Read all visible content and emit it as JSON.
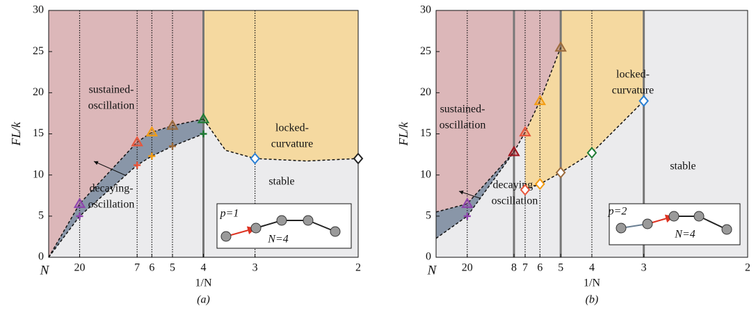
{
  "chart_data": [
    {
      "type": "phase",
      "caption": "(a)",
      "xlabel": "1/N",
      "ylabel": "FL/k",
      "xlim": [
        0,
        0.5
      ],
      "ylim": [
        0,
        30
      ],
      "xticks": [
        {
          "value": 0,
          "label": "N"
        },
        {
          "value": 0.05,
          "label": "20"
        },
        {
          "value": 0.1429,
          "label": "7"
        },
        {
          "value": 0.1667,
          "label": "6"
        },
        {
          "value": 0.2,
          "label": "5"
        },
        {
          "value": 0.25,
          "label": "4"
        },
        {
          "value": 0.3333,
          "label": "3"
        },
        {
          "value": 0.5,
          "label": "2"
        }
      ],
      "yticks": [
        0,
        5,
        10,
        15,
        20,
        25,
        30
      ],
      "background": "#ebebed",
      "boundaries": [
        {
          "x": [
            0,
            0.05,
            0.1429,
            0.1667,
            0.2,
            0.25
          ],
          "y": [
            0,
            6.5,
            14,
            15.2,
            16,
            16.8
          ]
        },
        {
          "x": [
            0,
            0.05,
            0.1429,
            0.1667,
            0.2,
            0.25
          ],
          "y": [
            0,
            5,
            11.2,
            12.3,
            13.5,
            15
          ]
        },
        {
          "x": [
            0.25,
            0.2857,
            0.3333,
            0.4167,
            0.5
          ],
          "y": [
            16.8,
            13,
            12,
            11.7,
            12
          ]
        }
      ],
      "regions": [
        {
          "color": "#dcb7b9",
          "x": [
            0,
            0.25
          ],
          "bottom": 0
        },
        {
          "color": "#8996a8",
          "x": [
            0,
            0.25
          ],
          "top": 0,
          "bottom": 1
        },
        {
          "color": "#f5d9a0",
          "x": [
            0.25,
            0.5
          ],
          "bottom": 2
        }
      ],
      "dotted_lines": [
        0.05,
        0.1429,
        0.1667,
        0.2,
        0.3333
      ],
      "solid_lines": [
        0.25
      ],
      "markers": {
        "x": [
          0.05,
          0.05,
          0.1429,
          0.1429,
          0.1667,
          0.1667,
          0.2,
          0.2,
          0.25,
          0.25,
          0.3333,
          0.5
        ],
        "y": [
          6.5,
          5,
          14,
          11.2,
          15.2,
          12.3,
          16,
          13.5,
          16.8,
          15,
          12,
          12
        ],
        "shape": [
          "triangle",
          "plus",
          "triangle",
          "plus",
          "triangle",
          "plus",
          "triangle",
          "plus",
          "triangle",
          "plus",
          "diamond",
          "diamond"
        ],
        "color": [
          "#8e44ad",
          "#8e44ad",
          "#e8553a",
          "#e8553a",
          "#f39c12",
          "#f39c12",
          "#9c6b3c",
          "#9c6b3c",
          "#1e7b34",
          "#1e7b34",
          "#2a7fd4",
          "#222222"
        ]
      },
      "labels": [
        [
          "sustained-",
          "oscillation"
        ],
        [
          "decaying-",
          "oscillation"
        ],
        [
          "locked-",
          "curvature"
        ],
        [
          "stable"
        ]
      ],
      "inset": {
        "p": "p=1",
        "n": "N=4"
      }
    },
    {
      "type": "phase",
      "caption": "(b)",
      "xlabel": "1/N",
      "ylabel": "FL/k",
      "xlim": [
        0,
        0.5
      ],
      "ylim": [
        0,
        30
      ],
      "xticks": [
        {
          "value": 0,
          "label": "N"
        },
        {
          "value": 0.05,
          "label": "20"
        },
        {
          "value": 0.125,
          "label": "8"
        },
        {
          "value": 0.1429,
          "label": "7"
        },
        {
          "value": 0.1667,
          "label": "6"
        },
        {
          "value": 0.2,
          "label": "5"
        },
        {
          "value": 0.25,
          "label": "4"
        },
        {
          "value": 0.3333,
          "label": "3"
        },
        {
          "value": 0.5,
          "label": "2"
        }
      ],
      "yticks": [
        0,
        5,
        10,
        15,
        20,
        25,
        30
      ],
      "background": "#ebebed",
      "boundaries": [
        {
          "x": [
            0,
            0.05,
            0.125,
            0.1429,
            0.1667,
            0.2
          ],
          "y": [
            5.5,
            6.5,
            12.8,
            15.2,
            19,
            25.5
          ]
        },
        {
          "x": [
            0,
            0.05,
            0.125
          ],
          "y": [
            2.3,
            5,
            12.8
          ]
        },
        {
          "x": [
            0.1429,
            0.1667,
            0.2,
            0.25,
            0.3333
          ],
          "y": [
            8.2,
            8.9,
            10.3,
            12.7,
            19
          ]
        }
      ],
      "regions": [
        {
          "color": "#dcb7b9",
          "x": [
            0,
            0.2
          ],
          "bottom": 0
        },
        {
          "color": "#8996a8",
          "x": [
            0,
            0.125
          ],
          "top": 0,
          "bottom": 1
        },
        {
          "color": "#f5d9a0",
          "x": [
            0.1429,
            0.2
          ],
          "top": 0,
          "bottom": 2
        },
        {
          "color": "#f5d9a0",
          "x": [
            0.2,
            0.3333
          ],
          "bottom": 2
        }
      ],
      "dotted_lines": [
        0.05,
        0.1429,
        0.1667,
        0.25
      ],
      "solid_lines": [
        0.125,
        0.2,
        0.3333
      ],
      "markers": {
        "x": [
          0.05,
          0.05,
          0.125,
          0.1429,
          0.1429,
          0.1667,
          0.1667,
          0.2,
          0.2,
          0.25,
          0.3333
        ],
        "y": [
          6.5,
          5,
          12.8,
          15.2,
          8.2,
          19,
          8.9,
          25.5,
          10.3,
          12.7,
          19
        ],
        "shape": [
          "triangle",
          "plus",
          "triangle",
          "triangle",
          "diamond",
          "triangle",
          "diamond",
          "triangle",
          "diamond",
          "diamond",
          "diamond"
        ],
        "color": [
          "#8e44ad",
          "#8e44ad",
          "#a0141e",
          "#e8553a",
          "#e8553a",
          "#f39c12",
          "#f39c12",
          "#9c6b3c",
          "#9c6b3c",
          "#1e7b34",
          "#2a7fd4"
        ]
      },
      "labels": [
        [
          "sustained-",
          "oscillation"
        ],
        [
          "decaying-",
          "oscillation"
        ],
        [
          "locked-",
          "curvature"
        ],
        [
          "stable"
        ]
      ],
      "inset": {
        "p": "p=2",
        "n": "N=4"
      }
    }
  ]
}
